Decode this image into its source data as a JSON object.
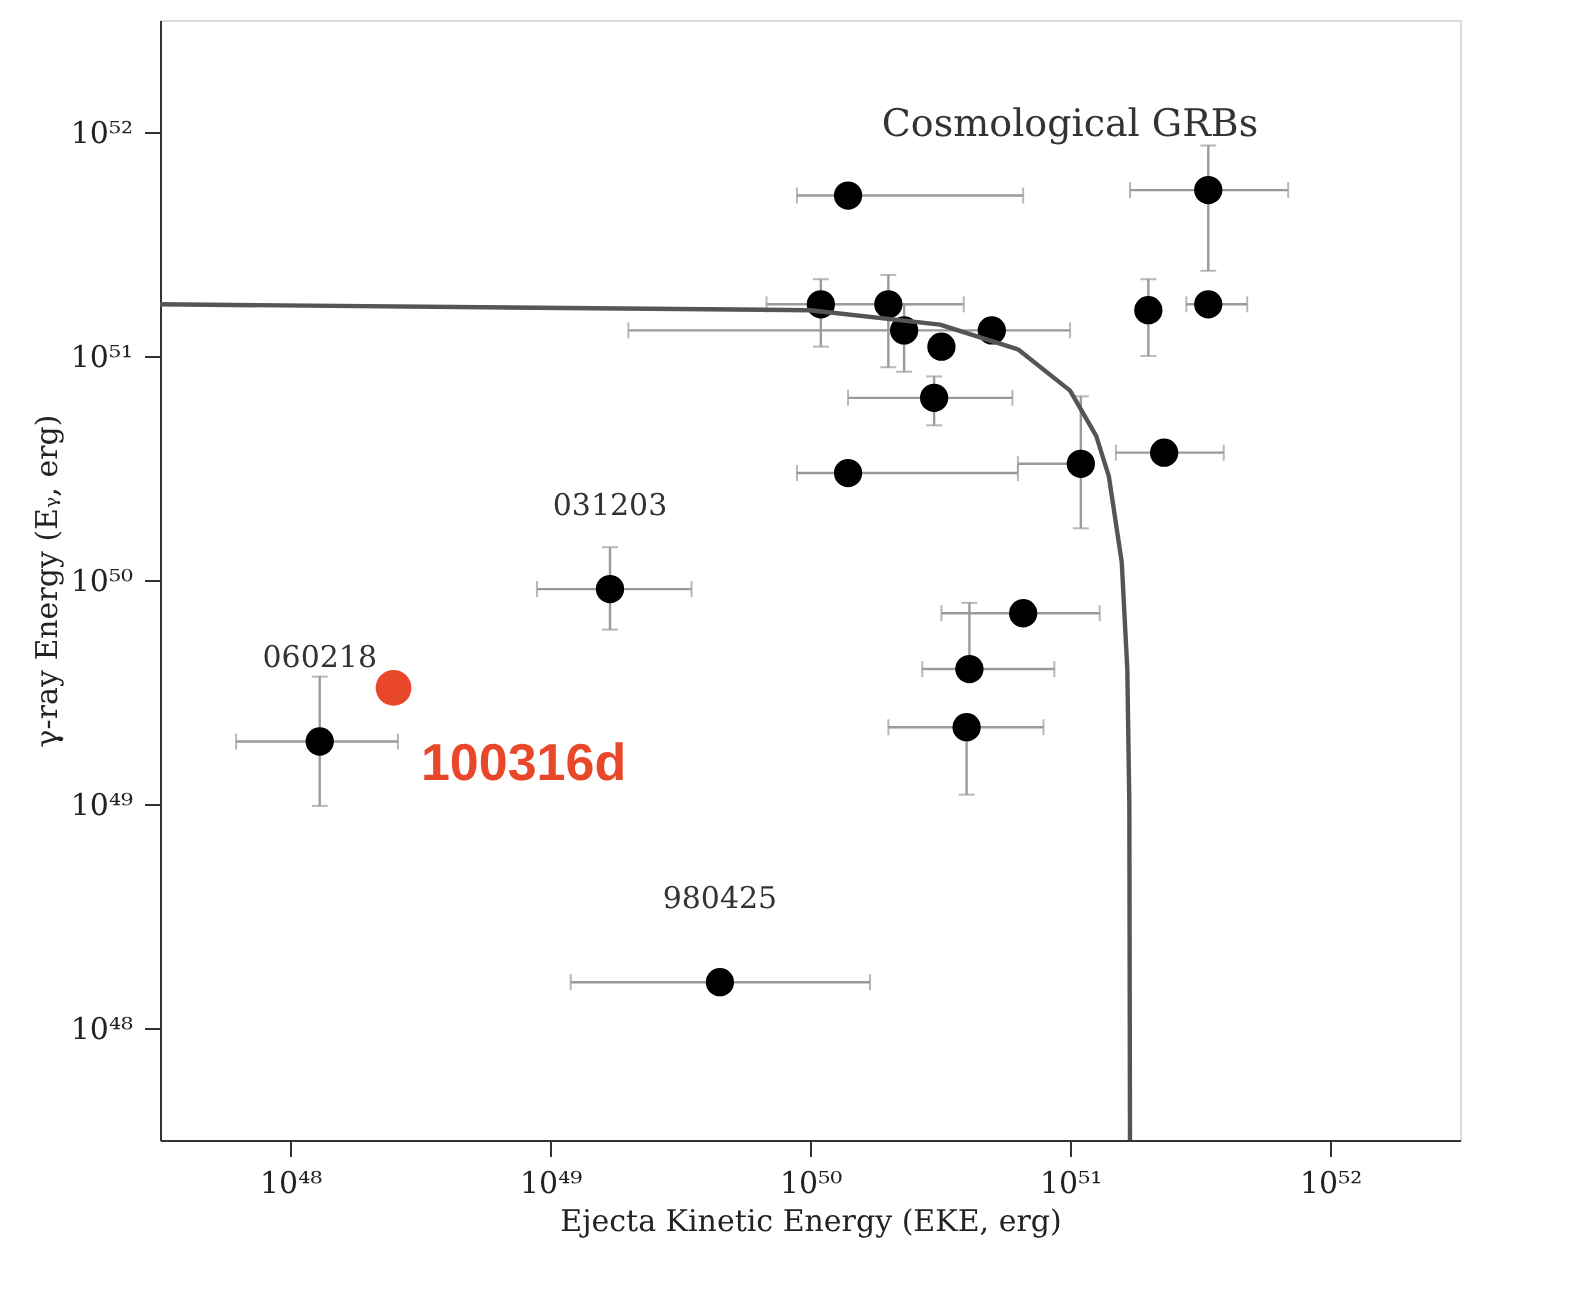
{
  "chart_data": {
    "type": "scatter",
    "xlabel": "Ejecta Kinetic Energy (EKE, erg)",
    "ylabel": "γ-ray Energy (Eᵧ, erg)",
    "log": "xy",
    "grid": false,
    "legend": false,
    "marker": "circle",
    "xlim": [
      3.16e+47,
      3.16e+52
    ],
    "ylim": [
      3.16e+47,
      3.16e+52
    ],
    "xticks": [
      {
        "value": 1e+48,
        "label": "10⁴⁸"
      },
      {
        "value": 1e+49,
        "label": "10⁴⁹"
      },
      {
        "value": 1e+50,
        "label": "10⁵⁰"
      },
      {
        "value": 1e+51,
        "label": "10⁵¹"
      },
      {
        "value": 1e+52,
        "label": "10⁵²"
      }
    ],
    "yticks": [
      {
        "value": 1e+48,
        "label": "10⁴⁸"
      },
      {
        "value": 1e+49,
        "label": "10⁴⁹"
      },
      {
        "value": 1e+50,
        "label": "10⁵⁰"
      },
      {
        "value": 1e+51,
        "label": "10⁵¹"
      },
      {
        "value": 1e+52,
        "label": "10⁵²"
      }
    ],
    "series": [
      {
        "color": "#000000",
        "x": [
          1.3e+48,
          1.7e+49,
          4.5e+49,
          1.1e+50,
          1.4e+50,
          2e+50,
          2.3e+50,
          3.2e+50,
          5e+50,
          3e+50,
          1.4e+50,
          1.1e+51,
          2.3e+51,
          2e+51,
          3.4e+51,
          3.4e+51,
          6.6e+50,
          4.1e+50,
          4e+50
        ],
        "values": [
          1.9e+49,
          9.1e+49,
          1.6e+48,
          1.7e+51,
          5.2e+51,
          1.7e+51,
          1.3e+51,
          1.1e+51,
          1.3e+51,
          6.5e+50,
          3e+50,
          3.3e+50,
          3.7e+50,
          1.6e+51,
          1.7e+51,
          5.5e+51,
          7.1e+49,
          4e+49,
          2.2e+49
        ],
        "xerrors": [
          [
            6.2e+47,
            2.6e+48
          ],
          [
            8.9e+48,
            3.5e+49
          ],
          [
            1.2e+49,
            1.7e+50
          ],
          [
            6.8e+49,
            3.9e+50
          ],
          [
            8.9e+49,
            6.6e+50
          ],
          null,
          null,
          null,
          [
            2e+49,
            1e+51
          ],
          [
            1.4e+50,
            6e+50
          ],
          [
            8.9e+49,
            6.3e+50
          ],
          [
            6.3e+50,
            1.1e+51
          ],
          [
            1.5e+51,
            3.9e+51
          ],
          null,
          [
            2.8e+51,
            4.8e+51
          ],
          [
            1.7e+51,
            6.9e+51
          ],
          [
            3.2e+50,
            1.3e+51
          ],
          [
            2.7e+50,
            8.7e+50
          ],
          [
            2e+50,
            7.9e+50
          ]
        ],
        "errors": [
          [
            9.8e+48,
            3.7e+49
          ],
          [
            6e+49,
            1.4e+50
          ],
          null,
          [
            1.1e+51,
            2.2e+51
          ],
          null,
          [
            8.9e+50,
            2.3e+51
          ],
          [
            8.5e+50,
            1.7e+51
          ],
          null,
          null,
          [
            4.9e+50,
            8.1e+50
          ],
          null,
          [
            1.7e+50,
            6.6e+50
          ],
          null,
          [
            1e+51,
            2.2e+51
          ],
          null,
          [
            2.4e+51,
            8.7e+51
          ],
          null,
          [
            4e+49,
            7.9e+49
          ],
          [
            1.1e+49,
            2.2e+49
          ]
        ]
      },
      {
        "color": "#e8472a",
        "x": [
          2.5e+48
        ],
        "values": [
          3.3e+49
        ]
      },
      {
        "type": "line",
        "marker": "none",
        "color": "#555555",
        "line_style": "solid",
        "x": [
          3.16e+47,
          1e+50,
          3.16e+50,
          6.3e+50,
          1e+51,
          1.26e+51,
          1.41e+51,
          1.58e+51,
          1.66e+51,
          1.69e+51,
          1.7e+51
        ],
        "values": [
          1.7e+51,
          1.6e+51,
          1.38e+51,
          1.07e+51,
          7e+50,
          4.4e+50,
          2.9e+50,
          1.2e+50,
          4e+49,
          1e+49,
          3.16e+47
        ]
      }
    ],
    "annotations": [
      "Cosmological GRBs",
      {
        "text": "031203",
        "x": 1.7e+49,
        "y": 9.1e+49
      },
      {
        "text": "060218",
        "x": 1.3e+48,
        "y": 1.9e+49
      },
      {
        "text": "980425",
        "x": 4.5e+49,
        "y": 1.6e+48
      },
      {
        "text": "100316d",
        "x": 2.5e+48,
        "y": 3.3e+49
      }
    ]
  }
}
